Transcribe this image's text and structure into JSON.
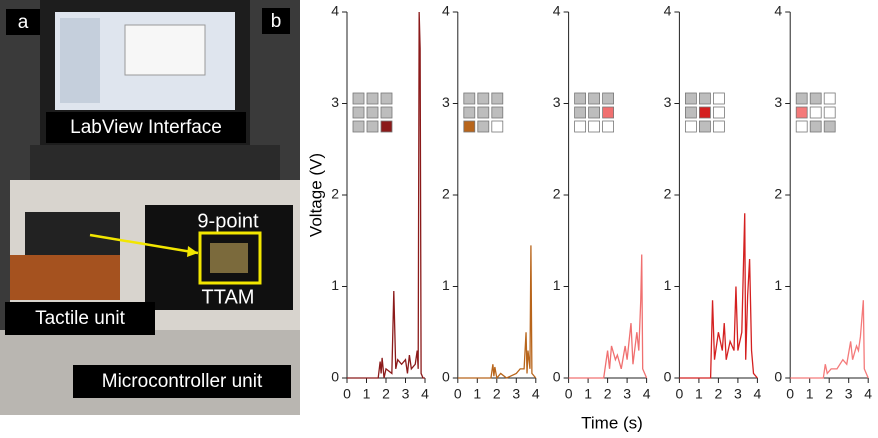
{
  "photo": {
    "panel_label": "a",
    "screen_label": "LabView Interface",
    "inset_top": "9-point",
    "inset_bottom": "TTAM",
    "tactile_label": "Tactile unit",
    "mcu_label": "Microcontroller unit"
  },
  "panel_b_label": "b",
  "axis_labels": {
    "y": "Voltage (V)",
    "x": "Time (s)"
  },
  "chart_data": [
    {
      "type": "line",
      "color": "#8b1a1a",
      "sensor_grid": [
        "#bdbdbd",
        "#bdbdbd",
        "#bdbdbd",
        "#bdbdbd",
        "#bdbdbd",
        "#bdbdbd",
        "#bdbdbd",
        "#bdbdbd",
        "#8b1a1a"
      ],
      "x": [
        0,
        1.6,
        1.7,
        1.75,
        1.8,
        1.9,
        2.0,
        2.3,
        2.4,
        2.5,
        2.6,
        2.8,
        3.0,
        3.1,
        3.2,
        3.3,
        3.5,
        3.6,
        3.65,
        3.7,
        3.75,
        3.8,
        3.9,
        4.0
      ],
      "values": [
        0,
        0,
        0.18,
        0.05,
        0.22,
        0,
        0.1,
        0.05,
        0.95,
        0.1,
        0.2,
        0.15,
        0.2,
        0.05,
        0.25,
        0.1,
        0.15,
        0.3,
        0.1,
        4.0,
        3.6,
        0.05,
        0,
        0
      ],
      "xlim": [
        0,
        4
      ],
      "xticks": [
        0,
        1,
        2,
        3,
        4
      ],
      "ylim": [
        0,
        4
      ],
      "yticks": [
        0,
        1,
        2,
        3,
        4
      ]
    },
    {
      "type": "line",
      "color": "#b8651b",
      "sensor_grid": [
        "#bdbdbd",
        "#bdbdbd",
        "#bdbdbd",
        "#bdbdbd",
        "#bdbdbd",
        "#bdbdbd",
        "#b8651b",
        "#bdbdbd",
        "#ffffff"
      ],
      "x": [
        0,
        1.7,
        1.8,
        1.85,
        1.9,
        2.0,
        2.2,
        2.5,
        3.0,
        3.2,
        3.4,
        3.5,
        3.55,
        3.6,
        3.7,
        3.75,
        3.8,
        4.0
      ],
      "values": [
        0,
        0,
        0.15,
        0.02,
        0.12,
        0,
        0.05,
        0,
        0.05,
        0.1,
        0.1,
        0.5,
        0.05,
        0.3,
        0.1,
        1.45,
        0.05,
        0
      ],
      "xlim": [
        0,
        4
      ],
      "xticks": [
        0,
        1,
        2,
        3,
        4
      ],
      "ylim": [
        0,
        4
      ],
      "yticks": [
        0,
        1,
        2,
        3,
        4
      ]
    },
    {
      "type": "line",
      "color": "#f07070",
      "sensor_grid": [
        "#bdbdbd",
        "#bdbdbd",
        "#bdbdbd",
        "#bdbdbd",
        "#bdbdbd",
        "#f07070",
        "#ffffff",
        "#ffffff",
        "#ffffff"
      ],
      "x": [
        0,
        1.8,
        1.9,
        2.0,
        2.1,
        2.2,
        2.4,
        2.5,
        2.7,
        2.9,
        3.0,
        3.2,
        3.3,
        3.5,
        3.6,
        3.7,
        3.75,
        3.8,
        4.0
      ],
      "values": [
        0,
        0,
        0.15,
        0.3,
        0.1,
        0.35,
        0.2,
        0.25,
        0.1,
        0.35,
        0.2,
        0.6,
        0.15,
        0.5,
        0.3,
        0.85,
        1.35,
        0.1,
        0
      ],
      "xlim": [
        0,
        4
      ],
      "xticks": [
        0,
        1,
        2,
        3,
        4
      ],
      "ylim": [
        0,
        4
      ],
      "yticks": [
        0,
        1,
        2,
        3,
        4
      ]
    },
    {
      "type": "line",
      "color": "#d42020",
      "sensor_grid": [
        "#bdbdbd",
        "#bdbdbd",
        "#ffffff",
        "#bdbdbd",
        "#d42020",
        "#ffffff",
        "#ffffff",
        "#bdbdbd",
        "#ffffff"
      ],
      "x": [
        0,
        1.6,
        1.7,
        1.8,
        2.0,
        2.2,
        2.3,
        2.4,
        2.6,
        2.8,
        2.9,
        3.0,
        3.2,
        3.35,
        3.4,
        3.5,
        3.6,
        3.7,
        3.8,
        4.0
      ],
      "values": [
        0,
        0,
        0.85,
        0.2,
        0.5,
        0.3,
        0.6,
        0.2,
        0.4,
        0.3,
        1.0,
        0.3,
        0.5,
        1.8,
        0.2,
        0.9,
        1.3,
        0.3,
        0.05,
        0
      ],
      "xlim": [
        0,
        4
      ],
      "xticks": [
        0,
        1,
        2,
        3,
        4
      ],
      "ylim": [
        0,
        4
      ],
      "yticks": [
        0,
        1,
        2,
        3,
        4
      ]
    },
    {
      "type": "line",
      "color": "#f47a7a",
      "sensor_grid": [
        "#bdbdbd",
        "#bdbdbd",
        "#ffffff",
        "#f47a7a",
        "#ffffff",
        "#ffffff",
        "#ffffff",
        "#bdbdbd",
        "#bdbdbd"
      ],
      "x": [
        0,
        1.7,
        1.8,
        1.9,
        2.1,
        2.4,
        2.7,
        2.9,
        3.1,
        3.2,
        3.4,
        3.5,
        3.6,
        3.75,
        3.8,
        4.0
      ],
      "values": [
        0,
        0,
        0.15,
        0.05,
        0.1,
        0.1,
        0.2,
        0.15,
        0.4,
        0.2,
        0.35,
        0.3,
        0.45,
        0.85,
        0.1,
        0
      ],
      "xlim": [
        0,
        4
      ],
      "xticks": [
        0,
        1,
        2,
        3,
        4
      ],
      "ylim": [
        0,
        4
      ],
      "yticks": [
        0,
        1,
        2,
        3,
        4
      ]
    }
  ]
}
